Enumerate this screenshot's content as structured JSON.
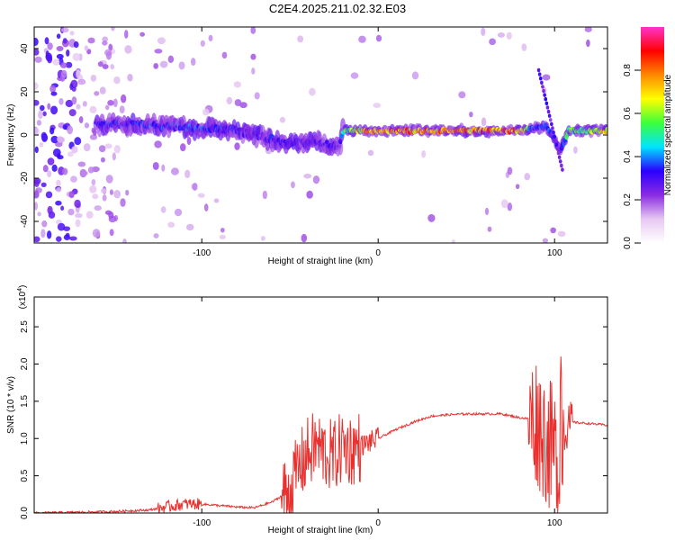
{
  "title": "C2E4.2025.211.02.32.E03",
  "colors": {
    "snr_line": "#e8312e",
    "colormap": [
      "#ffffff",
      "#e7c8f2",
      "#8a2be2",
      "#2a00ff",
      "#00e5ff",
      "#3cff3c",
      "#ffff00",
      "#ff8800",
      "#ff0000",
      "#ff33cc"
    ]
  },
  "chart_data": [
    {
      "type": "heatmap",
      "xlabel": "Height of straight line (km)",
      "ylabel": "Frequency (Hz)",
      "xlim": [
        -195,
        130
      ],
      "ylim": [
        -50,
        50
      ],
      "xticks": [
        -100,
        0,
        100
      ],
      "yticks": [
        -40,
        -20,
        0,
        20,
        40
      ],
      "colorbar": {
        "label": "Normalized spectral amplitude",
        "range": [
          0,
          1
        ],
        "ticks": [
          "0.0",
          "0.2",
          "0.4",
          "0.6",
          "0.8"
        ]
      },
      "ridge": {
        "x": [
          -160,
          -140,
          -120,
          -100,
          -80,
          -70,
          -60,
          -50,
          -40,
          -30,
          -22,
          -20,
          0,
          20,
          40,
          60,
          80,
          88,
          95,
          100,
          103,
          108,
          130
        ],
        "y": [
          5,
          5,
          4,
          3,
          2,
          0,
          -2,
          -4,
          -3,
          -4,
          -6,
          2,
          2,
          2,
          2,
          2,
          2,
          3,
          4,
          -2,
          -8,
          2,
          2
        ],
        "amplitude": [
          0.35,
          0.35,
          0.4,
          0.4,
          0.35,
          0.3,
          0.35,
          0.3,
          0.3,
          0.35,
          0.3,
          0.6,
          0.9,
          0.85,
          0.85,
          0.9,
          0.9,
          0.4,
          0.45,
          0.35,
          0.3,
          0.6,
          0.75
        ]
      }
    },
    {
      "type": "line",
      "xlabel": "Height of straight line (km)",
      "ylabel": "SNR (10 * v/v)",
      "yscale_label": "(x10^4)",
      "xlim": [
        -195,
        130
      ],
      "ylim": [
        0,
        2.9
      ],
      "xticks": [
        -100,
        0,
        100
      ],
      "yticks": [
        0.0,
        0.5,
        1.0,
        1.5,
        2.0,
        2.5
      ],
      "series": [
        {
          "x": [
            -195,
            -170,
            -150,
            -130,
            -120,
            -110,
            -100,
            -90,
            -80,
            -70,
            -60,
            -50,
            -45,
            -40,
            -35,
            -30,
            -25,
            -20,
            -15,
            -10,
            0,
            10,
            20,
            30,
            40,
            50,
            60,
            70,
            80,
            90,
            95,
            100,
            103,
            105,
            110,
            120,
            130
          ],
          "y": [
            0.0,
            0.01,
            0.02,
            0.04,
            0.08,
            0.12,
            0.12,
            0.1,
            0.08,
            0.07,
            0.15,
            0.3,
            0.6,
            0.8,
            0.9,
            0.8,
            0.75,
            0.9,
            0.85,
            0.9,
            1.0,
            1.12,
            1.22,
            1.3,
            1.32,
            1.33,
            1.33,
            1.33,
            1.28,
            1.25,
            1.0,
            0.8,
            0.5,
            1.1,
            1.22,
            1.2,
            1.18
          ]
        }
      ]
    }
  ]
}
